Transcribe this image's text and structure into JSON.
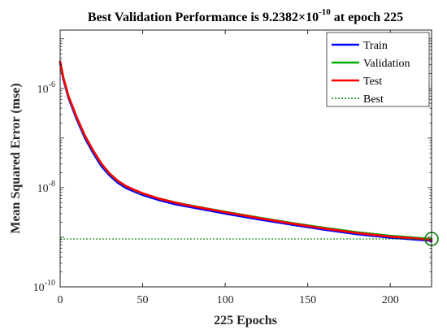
{
  "chart_data": {
    "type": "line",
    "title": {
      "prefix": "Best Validation Performance is 9.2382×10",
      "exponent": "-10",
      "suffix": " at epoch 225"
    },
    "xlabel": "225 Epochs",
    "ylabel": "Mean Squared Error  (mse)",
    "y_scale": "log",
    "xlim": [
      0,
      225
    ],
    "ylim": [
      1e-10,
      1.5e-05
    ],
    "grid": false,
    "legend_position": "top-right",
    "x_ticks": [
      {
        "value": 0,
        "label": "0"
      },
      {
        "value": 50,
        "label": "50"
      },
      {
        "value": 100,
        "label": "100"
      },
      {
        "value": 150,
        "label": "150"
      },
      {
        "value": 200,
        "label": "200"
      }
    ],
    "y_ticks": [
      {
        "value": 1e-10,
        "base": "10",
        "exp": "-10"
      },
      {
        "value": 1e-08,
        "base": "10",
        "exp": "-8"
      },
      {
        "value": 1e-06,
        "base": "10",
        "exp": "-6"
      }
    ],
    "x": [
      0,
      2,
      5,
      10,
      15,
      20,
      25,
      30,
      35,
      40,
      45,
      50,
      60,
      70,
      80,
      100,
      120,
      140,
      160,
      180,
      200,
      215,
      225
    ],
    "series": [
      {
        "name": "Train",
        "color": "#0000ff",
        "values": [
          3.2e-06,
          1.5e-06,
          6.5e-07,
          2.4e-07,
          1e-07,
          5e-08,
          2.7e-08,
          1.75e-08,
          1.25e-08,
          9.8e-09,
          8.3e-09,
          7.1e-09,
          5.6e-09,
          4.6e-09,
          4e-09,
          3e-09,
          2.3e-09,
          1.8e-09,
          1.42e-09,
          1.15e-09,
          9.8e-10,
          9e-10,
          8.5e-10
        ]
      },
      {
        "name": "Validation",
        "color": "#00b000",
        "values": [
          3.4e-06,
          1.6e-06,
          7e-07,
          2.6e-07,
          1.1e-07,
          5.5e-08,
          3e-08,
          1.9e-08,
          1.35e-08,
          1.06e-08,
          8.9e-09,
          7.6e-09,
          6e-09,
          5e-09,
          4.3e-09,
          3.25e-09,
          2.5e-09,
          1.95e-09,
          1.55e-09,
          1.26e-09,
          1.07e-09,
          9.8e-10,
          9.2382e-10
        ]
      },
      {
        "name": "Test",
        "color": "#ff0000",
        "values": [
          3.5e-06,
          1.62e-06,
          7.1e-07,
          2.65e-07,
          1.12e-07,
          5.6e-08,
          3.05e-08,
          1.92e-08,
          1.37e-08,
          1.07e-08,
          9e-09,
          7.7e-09,
          6e-09,
          4.95e-09,
          4.25e-09,
          3.2e-09,
          2.45e-09,
          1.9e-09,
          1.5e-09,
          1.22e-09,
          1.03e-09,
          9.5e-10,
          8.9e-10
        ]
      }
    ],
    "best": {
      "name": "Best",
      "color": "#008000",
      "epoch": 225,
      "value": 9.2382e-10
    }
  }
}
